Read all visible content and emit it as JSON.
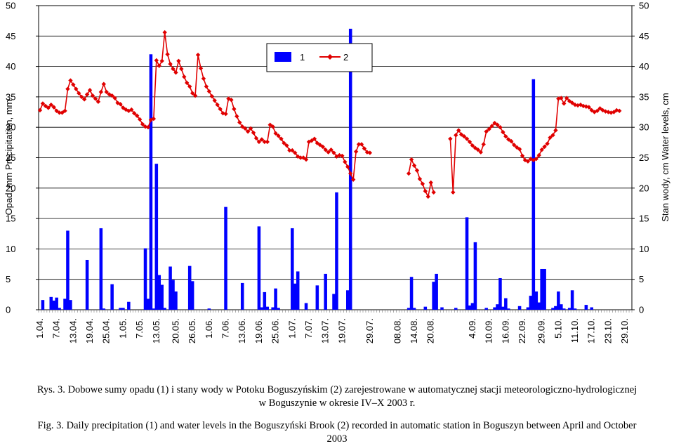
{
  "chart_data": {
    "type": "bar",
    "combo": "bar+line",
    "y_left": {
      "label": "Opad, mm   Precipitation, mm",
      "ylim": [
        0,
        50
      ],
      "ticks": [
        0,
        5,
        10,
        15,
        20,
        25,
        30,
        35,
        40,
        45,
        50
      ]
    },
    "y_right": {
      "label": "Stan wody, cm   Water levels, cm",
      "ylim": [
        0,
        50
      ],
      "ticks": [
        0,
        5,
        10,
        15,
        20,
        25,
        30,
        35,
        40,
        45,
        50
      ]
    },
    "x_tick_labels": [
      "1.04.",
      "7.04.",
      "13.04.",
      "19.04.",
      "25.04.",
      "1.05.",
      "7.05.",
      "13.05.",
      "20.05.",
      "26.05.",
      "1.06.",
      "7.06.",
      "13.06.",
      "19.06.",
      "25.06.",
      "1.07.",
      "7.07.",
      "13.07.",
      "19.07.",
      "29.07.",
      "08.08.",
      "14.08.",
      "20.08.",
      "4.09.",
      "10.09.",
      "16.09.",
      "22.09.",
      "29.09.",
      "5.10.",
      "11.10.",
      "17.10.",
      "23.10.",
      "29.10."
    ],
    "x_tick_positions": [
      0,
      6,
      12,
      18,
      24,
      30,
      36,
      42,
      49,
      55,
      61,
      67,
      73,
      79,
      85,
      91,
      97,
      103,
      109,
      119,
      129,
      135,
      141,
      156,
      162,
      168,
      174,
      181,
      187,
      193,
      199,
      205,
      211
    ],
    "grid": "horizontal",
    "legend_position": "top-center",
    "series": [
      {
        "name": "1",
        "type": "bar",
        "axis": "left",
        "color": "#0000ff",
        "values": [
          [
            1,
            1.6
          ],
          [
            4,
            2.1
          ],
          [
            5,
            1.5
          ],
          [
            6,
            2.0
          ],
          [
            7,
            0.3
          ],
          [
            9,
            1.8
          ],
          [
            10,
            13
          ],
          [
            11,
            1.6
          ],
          [
            17,
            8.2
          ],
          [
            22,
            13.4
          ],
          [
            23,
            0.2
          ],
          [
            26,
            4.2
          ],
          [
            29,
            0.3
          ],
          [
            30,
            0.3
          ],
          [
            32,
            1.3
          ],
          [
            38,
            10.1
          ],
          [
            39,
            1.8
          ],
          [
            40,
            42
          ],
          [
            41,
            0.2
          ],
          [
            42,
            24
          ],
          [
            43,
            5.7
          ],
          [
            44,
            4.1
          ],
          [
            45,
            0.3
          ],
          [
            47,
            7.1
          ],
          [
            48,
            4.9
          ],
          [
            49,
            3.0
          ],
          [
            54,
            7.2
          ],
          [
            55,
            4.7
          ],
          [
            61,
            0.2
          ],
          [
            67,
            16.9
          ],
          [
            73,
            4.4
          ],
          [
            79,
            13.7
          ],
          [
            80,
            0.4
          ],
          [
            81,
            2.9
          ],
          [
            82,
            0.5
          ],
          [
            84,
            0.4
          ],
          [
            85,
            3.5
          ],
          [
            86,
            0.3
          ],
          [
            91,
            13.4
          ],
          [
            92,
            4.3
          ],
          [
            93,
            6.3
          ],
          [
            96,
            1.1
          ],
          [
            100,
            4.0
          ],
          [
            103,
            5.9
          ],
          [
            106,
            2.6
          ],
          [
            107,
            19.3
          ],
          [
            111,
            3.2
          ],
          [
            112,
            46.2
          ],
          [
            133,
            0.3
          ],
          [
            134,
            5.4
          ],
          [
            135,
            0.3
          ],
          [
            139,
            0.5
          ],
          [
            142,
            4.6
          ],
          [
            143,
            5.9
          ],
          [
            145,
            0.4
          ],
          [
            150,
            0.3
          ],
          [
            154,
            15.2
          ],
          [
            155,
            0.7
          ],
          [
            156,
            1.1
          ],
          [
            157,
            11.1
          ],
          [
            161,
            0.3
          ],
          [
            164,
            0.4
          ],
          [
            165,
            0.9
          ],
          [
            166,
            5.2
          ],
          [
            167,
            0.5
          ],
          [
            168,
            1.9
          ],
          [
            169,
            0.2
          ],
          [
            173,
            0.6
          ],
          [
            176,
            0.4
          ],
          [
            177,
            2.3
          ],
          [
            178,
            37.9
          ],
          [
            179,
            3.0
          ],
          [
            180,
            1.2
          ],
          [
            181,
            6.7
          ],
          [
            182,
            6.7
          ],
          [
            185,
            0.3
          ],
          [
            186,
            0.6
          ],
          [
            187,
            3.0
          ],
          [
            188,
            0.9
          ],
          [
            189,
            0.2
          ],
          [
            191,
            0.3
          ],
          [
            192,
            3.2
          ],
          [
            193,
            0.2
          ],
          [
            197,
            0.8
          ],
          [
            199,
            0.4
          ]
        ]
      },
      {
        "name": "2",
        "type": "line",
        "axis": "right",
        "color": "#e00000",
        "segments": [
          {
            "start": 0,
            "values": [
              32.8,
              33.9,
              33.5,
              33.2,
              33.7,
              33.3,
              32.7,
              32.4,
              32.4,
              32.7,
              36.3,
              37.7,
              37.0,
              36.3,
              35.6,
              35.0,
              34.6,
              35.4,
              36.1,
              35.2,
              34.7,
              34.2,
              35.8,
              37.1,
              35.8,
              35.4,
              35.2,
              34.8,
              34.0,
              33.8,
              33.2,
              32.9,
              32.7,
              32.9,
              32.3,
              31.9,
              31.3,
              30.5,
              30.1,
              30.0,
              31.2,
              31.4,
              41.0,
              40.1,
              40.9,
              45.6,
              42.0,
              40.4,
              39.6,
              39.0,
              40.9,
              39.6,
              38.3,
              37.3,
              36.7,
              35.6,
              35.2,
              41.9,
              39.7,
              38.0,
              36.7,
              35.9,
              35.1,
              34.4,
              33.7,
              33.0,
              32.3,
              32.2,
              34.7,
              34.5,
              33.0,
              31.8,
              30.8,
              30.1,
              29.8,
              29.3,
              29.8,
              29.1,
              28.2,
              27.6,
              28.0,
              27.6,
              27.6,
              30.4,
              30.1,
              29.0,
              28.6,
              28.1,
              27.4,
              27.0,
              26.2,
              26.2,
              25.8,
              25.2,
              25.0,
              25.0,
              24.7,
              27.6,
              27.8,
              28.1,
              27.4,
              27.1,
              26.8,
              26.3,
              25.9,
              26.3,
              25.8,
              25.2,
              25.4,
              25.3,
              24.3,
              23.5,
              22.4,
              21.4,
              26.0,
              27.2,
              27.2,
              26.5,
              25.9,
              25.8
            ]
          },
          {
            "start": 133,
            "values": [
              22.4,
              24.7,
              23.7,
              22.9,
              21.5,
              20.7,
              19.5,
              18.6,
              20.9,
              19.3
            ]
          },
          {
            "start": 148,
            "values": [
              28.1,
              19.3,
              28.7,
              29.5,
              28.8,
              28.5,
              28.1,
              27.6,
              27.0,
              26.6,
              26.3,
              25.9,
              27.2,
              29.3,
              29.7,
              30.2,
              30.7,
              30.4,
              30.0,
              29.2,
              28.5,
              28.0,
              27.7,
              27.1,
              26.7,
              26.4,
              25.3,
              24.6,
              24.4,
              24.8,
              24.6,
              24.8,
              25.4,
              26.3,
              26.8,
              27.3,
              28.3,
              28.7,
              29.5,
              34.7,
              34.8,
              33.9,
              34.8,
              34.3,
              34.0,
              33.7,
              33.6,
              33.7,
              33.5,
              33.4,
              33.3,
              32.8,
              32.5,
              32.7,
              33.1,
              32.8,
              32.6,
              32.5,
              32.4,
              32.5,
              32.8,
              32.7
            ]
          }
        ]
      }
    ]
  },
  "legend": {
    "item1": "1",
    "item2": "2"
  },
  "caption_pl": {
    "prefix": "Rys. 3.",
    "line1": "Dobowe sumy opadu (1) i stany wody w Potoku Boguszyńskim (2) zarejestrowane w automatycznej stacji meteorologiczno-hydrologicznej",
    "line2": "w Boguszynie w okresie IV–X 2003 r."
  },
  "caption_en": {
    "prefix": "Fig. 3.",
    "line1": "Daily precipitation (1) and water levels in the Boguszyński Brook (2) recorded in automatic station in Boguszyn between April and October",
    "line2": "2003"
  }
}
